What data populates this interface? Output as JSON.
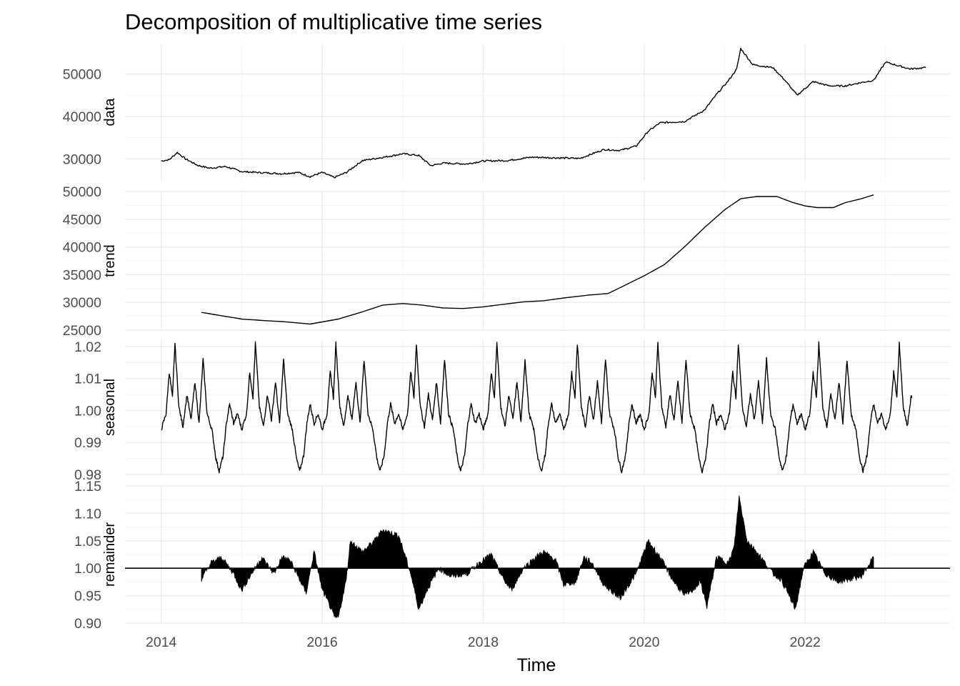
{
  "colors": {
    "background": "#ffffff",
    "grid_major": "#ebebeb",
    "grid_minor": "#f2f2f2",
    "line": "#000000",
    "tick_text": "#4d4d4d"
  },
  "chart_data": {
    "type": "line",
    "title": "Decomposition of multiplicative time series",
    "xlabel": "Time",
    "xlim": [
      2013.55,
      2023.8
    ],
    "x_ticks": [
      2014,
      2016,
      2018,
      2020,
      2022
    ],
    "x_tick_labels": [
      "2014",
      "2016",
      "2018",
      "2020",
      "2022"
    ],
    "grid": true,
    "legend": "none",
    "panels": [
      {
        "name": "data",
        "ylabel": "data",
        "ylim": [
          25000,
          57000
        ],
        "y_ticks": [
          30000,
          40000,
          50000
        ],
        "y_tick_labels": [
          "30000",
          "40000",
          "50000"
        ],
        "style": "line",
        "points": [
          [
            2014.0,
            29500
          ],
          [
            2014.1,
            29800
          ],
          [
            2014.2,
            31500
          ],
          [
            2014.3,
            30000
          ],
          [
            2014.45,
            28500
          ],
          [
            2014.6,
            27800
          ],
          [
            2014.8,
            28200
          ],
          [
            2015.0,
            27000
          ],
          [
            2015.2,
            26800
          ],
          [
            2015.5,
            26500
          ],
          [
            2015.7,
            26800
          ],
          [
            2015.85,
            25800
          ],
          [
            2016.0,
            26800
          ],
          [
            2016.15,
            25600
          ],
          [
            2016.3,
            26800
          ],
          [
            2016.5,
            29600
          ],
          [
            2016.8,
            30500
          ],
          [
            2017.0,
            31200
          ],
          [
            2017.2,
            30800
          ],
          [
            2017.35,
            28400
          ],
          [
            2017.5,
            29000
          ],
          [
            2017.8,
            28800
          ],
          [
            2018.0,
            29500
          ],
          [
            2018.3,
            29600
          ],
          [
            2018.6,
            30400
          ],
          [
            2019.0,
            30200
          ],
          [
            2019.2,
            30100
          ],
          [
            2019.5,
            32200
          ],
          [
            2019.7,
            32000
          ],
          [
            2019.9,
            33000
          ],
          [
            2020.05,
            36500
          ],
          [
            2020.2,
            38500
          ],
          [
            2020.5,
            38800
          ],
          [
            2020.75,
            41500
          ],
          [
            2020.9,
            45200
          ],
          [
            2021.05,
            48500
          ],
          [
            2021.15,
            51200
          ],
          [
            2021.2,
            56000
          ],
          [
            2021.35,
            52200
          ],
          [
            2021.6,
            51500
          ],
          [
            2021.75,
            48500
          ],
          [
            2021.9,
            45000
          ],
          [
            2022.1,
            48200
          ],
          [
            2022.3,
            47200
          ],
          [
            2022.5,
            47200
          ],
          [
            2022.7,
            48000
          ],
          [
            2022.85,
            48500
          ],
          [
            2023.0,
            52800
          ],
          [
            2023.3,
            51200
          ],
          [
            2023.5,
            51500
          ]
        ]
      },
      {
        "name": "trend",
        "ylabel": "trend",
        "ylim": [
          25000,
          50000
        ],
        "y_ticks": [
          25000,
          30000,
          35000,
          40000,
          45000,
          50000
        ],
        "y_tick_labels": [
          "25000",
          "30000",
          "35000",
          "40000",
          "45000",
          "50000"
        ],
        "style": "line",
        "points": [
          [
            2014.5,
            28200
          ],
          [
            2014.75,
            27600
          ],
          [
            2015.0,
            27000
          ],
          [
            2015.3,
            26700
          ],
          [
            2015.55,
            26500
          ],
          [
            2015.85,
            26100
          ],
          [
            2016.2,
            27000
          ],
          [
            2016.5,
            28300
          ],
          [
            2016.75,
            29500
          ],
          [
            2017.0,
            29800
          ],
          [
            2017.25,
            29500
          ],
          [
            2017.5,
            29000
          ],
          [
            2017.75,
            28900
          ],
          [
            2018.0,
            29200
          ],
          [
            2018.5,
            30100
          ],
          [
            2018.75,
            30300
          ],
          [
            2019.0,
            30800
          ],
          [
            2019.3,
            31300
          ],
          [
            2019.55,
            31600
          ],
          [
            2019.75,
            33000
          ],
          [
            2020.0,
            34800
          ],
          [
            2020.25,
            36800
          ],
          [
            2020.5,
            40000
          ],
          [
            2020.75,
            43500
          ],
          [
            2021.0,
            46700
          ],
          [
            2021.2,
            48700
          ],
          [
            2021.4,
            49100
          ],
          [
            2021.65,
            49100
          ],
          [
            2021.85,
            48000
          ],
          [
            2022.0,
            47400
          ],
          [
            2022.15,
            47100
          ],
          [
            2022.35,
            47100
          ],
          [
            2022.5,
            48000
          ],
          [
            2022.7,
            48700
          ],
          [
            2022.85,
            49400
          ]
        ]
      },
      {
        "name": "seasonal",
        "ylabel": "seasonal",
        "ylim": [
          0.98,
          1.022
        ],
        "y_ticks": [
          0.98,
          0.99,
          1.0,
          1.01,
          1.02
        ],
        "y_tick_labels": [
          "0.98",
          "0.99",
          "1.00",
          "1.01",
          "1.02"
        ],
        "style": "line",
        "x_start": 2014.0,
        "x_end": 2023.33,
        "period_years": 1,
        "one_period": [
          [
            0.0,
            0.994
          ],
          [
            0.06,
            0.999
          ],
          [
            0.1,
            1.012
          ],
          [
            0.14,
            1.004
          ],
          [
            0.17,
            1.021
          ],
          [
            0.22,
            1.001
          ],
          [
            0.27,
            0.995
          ],
          [
            0.32,
            1.005
          ],
          [
            0.37,
            0.997
          ],
          [
            0.42,
            1.009
          ],
          [
            0.47,
            0.996
          ],
          [
            0.52,
            1.016
          ],
          [
            0.57,
            0.999
          ],
          [
            0.63,
            0.994
          ],
          [
            0.68,
            0.985
          ],
          [
            0.72,
            0.981
          ],
          [
            0.77,
            0.986
          ],
          [
            0.81,
            0.996
          ],
          [
            0.85,
            1.002
          ],
          [
            0.9,
            0.996
          ],
          [
            0.95,
            0.999
          ],
          [
            1.0,
            0.994
          ]
        ]
      },
      {
        "name": "remainder",
        "ylabel": "remainder",
        "ylim": [
          0.9,
          1.15
        ],
        "y_ticks": [
          0.9,
          0.95,
          1.0,
          1.05,
          1.1,
          1.15
        ],
        "y_tick_labels": [
          "0.90",
          "0.95",
          "1.00",
          "1.05",
          "1.10",
          "1.15"
        ],
        "style": "area",
        "baseline": 1.0,
        "points": [
          [
            2014.5,
            0.98
          ],
          [
            2014.62,
            1.01
          ],
          [
            2014.75,
            1.02
          ],
          [
            2014.9,
            0.99
          ],
          [
            2015.0,
            0.96
          ],
          [
            2015.1,
            0.985
          ],
          [
            2015.25,
            1.02
          ],
          [
            2015.4,
            0.99
          ],
          [
            2015.5,
            1.02
          ],
          [
            2015.6,
            1.015
          ],
          [
            2015.75,
            0.97
          ],
          [
            2015.8,
            0.955
          ],
          [
            2015.9,
            1.03
          ],
          [
            2016.0,
            0.96
          ],
          [
            2016.1,
            0.93
          ],
          [
            2016.15,
            0.91
          ],
          [
            2016.2,
            0.91
          ],
          [
            2016.3,
            0.98
          ],
          [
            2016.35,
            1.05
          ],
          [
            2016.5,
            1.03
          ],
          [
            2016.65,
            1.05
          ],
          [
            2016.75,
            1.07
          ],
          [
            2016.95,
            1.06
          ],
          [
            2017.1,
            0.99
          ],
          [
            2017.2,
            0.925
          ],
          [
            2017.3,
            0.96
          ],
          [
            2017.45,
            1.0
          ],
          [
            2017.6,
            0.985
          ],
          [
            2017.8,
            0.99
          ],
          [
            2017.95,
            1.01
          ],
          [
            2018.1,
            1.025
          ],
          [
            2018.25,
            0.98
          ],
          [
            2018.35,
            0.96
          ],
          [
            2018.5,
            1.0
          ],
          [
            2018.65,
            1.02
          ],
          [
            2018.75,
            1.03
          ],
          [
            2018.9,
            1.015
          ],
          [
            2019.0,
            0.97
          ],
          [
            2019.15,
            0.975
          ],
          [
            2019.25,
            1.02
          ],
          [
            2019.35,
            1.01
          ],
          [
            2019.5,
            0.97
          ],
          [
            2019.7,
            0.945
          ],
          [
            2019.9,
            0.99
          ],
          [
            2020.05,
            1.05
          ],
          [
            2020.2,
            1.02
          ],
          [
            2020.35,
            0.98
          ],
          [
            2020.5,
            0.95
          ],
          [
            2020.6,
            0.96
          ],
          [
            2020.7,
            0.975
          ],
          [
            2020.78,
            0.93
          ],
          [
            2020.9,
            1.02
          ],
          [
            2021.05,
            1.01
          ],
          [
            2021.12,
            1.04
          ],
          [
            2021.18,
            1.13
          ],
          [
            2021.28,
            1.05
          ],
          [
            2021.4,
            1.03
          ],
          [
            2021.5,
            1.01
          ],
          [
            2021.6,
            0.99
          ],
          [
            2021.7,
            0.98
          ],
          [
            2021.8,
            0.95
          ],
          [
            2021.88,
            0.925
          ],
          [
            2021.98,
            1.0
          ],
          [
            2022.1,
            1.03
          ],
          [
            2022.25,
            0.99
          ],
          [
            2022.4,
            0.975
          ],
          [
            2022.55,
            0.98
          ],
          [
            2022.7,
            0.985
          ],
          [
            2022.85,
            1.02
          ]
        ]
      }
    ]
  }
}
